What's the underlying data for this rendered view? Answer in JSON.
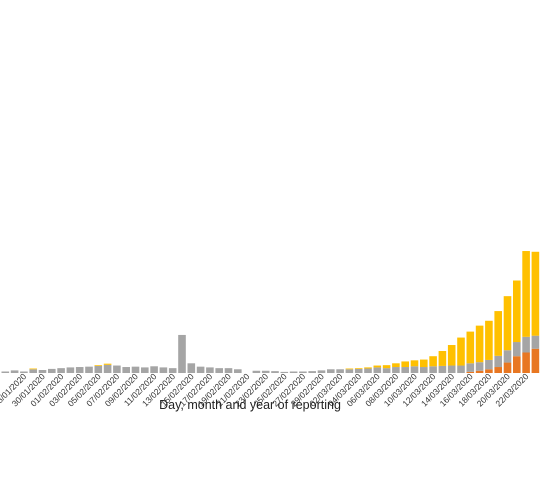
{
  "chart_data": {
    "type": "bar",
    "stacked": true,
    "xlabel": "Day, month and year of reporting",
    "ylabel": "",
    "title": "",
    "ylim": [
      0,
      100
    ],
    "grid": false,
    "colors": [
      "#E87722",
      "#A5A5A5",
      "#FFC000"
    ],
    "categories": [
      "26/01/2020",
      "27/01/2020",
      "28/01/2020",
      "29/01/2020",
      "30/01/2020",
      "31/01/2020",
      "01/02/2020",
      "02/02/2020",
      "03/02/2020",
      "04/02/2020",
      "05/02/2020",
      "06/02/2020",
      "07/02/2020",
      "08/02/2020",
      "09/02/2020",
      "10/02/2020",
      "11/02/2020",
      "12/02/2020",
      "13/02/2020",
      "14/02/2020",
      "15/02/2020",
      "16/02/2020",
      "17/02/2020",
      "18/02/2020",
      "19/02/2020",
      "20/02/2020",
      "21/02/2020",
      "22/02/2020",
      "23/02/2020",
      "24/02/2020",
      "25/02/2020",
      "26/02/2020",
      "27/02/2020",
      "28/02/2020",
      "29/02/2020",
      "01/03/2020",
      "02/03/2020",
      "03/03/2020",
      "04/03/2020",
      "05/03/2020",
      "06/03/2020",
      "07/03/2020",
      "08/03/2020",
      "09/03/2020",
      "10/03/2020",
      "11/03/2020",
      "12/03/2020",
      "13/03/2020",
      "14/03/2020",
      "15/03/2020",
      "16/03/2020",
      "17/03/2020",
      "18/03/2020",
      "19/03/2020",
      "20/03/2020",
      "21/03/2020",
      "22/03/2020",
      "23/03/2020"
    ],
    "tick_labels": [
      "28/01/2020",
      "30/01/2020",
      "01/02/2020",
      "03/02/2020",
      "05/02/2020",
      "07/02/2020",
      "09/02/2020",
      "11/02/2020",
      "13/02/2020",
      "15/02/2020",
      "17/02/2020",
      "19/02/2020",
      "21/02/2020",
      "23/02/2020",
      "25/02/2020",
      "27/02/2020",
      "29/02/2020",
      "02/03/2020",
      "04/03/2020",
      "06/03/2020",
      "08/03/2020",
      "10/03/2020",
      "12/03/2020",
      "14/03/2020",
      "16/03/2020",
      "18/03/2020",
      "20/03/2020",
      "22/03/2020"
    ],
    "series": [
      {
        "values": [
          0.0,
          0.0,
          0.0,
          0.0,
          0.0,
          0.0,
          0.0,
          0.0,
          0.0,
          0.0,
          0.0,
          0.0,
          0.0,
          0.0,
          0.0,
          0.0,
          0.0,
          0.0,
          0.0,
          0.0,
          0.0,
          0.0,
          0.0,
          0.0,
          0.0,
          0.0,
          0.0,
          0.0,
          0.0,
          0.0,
          0.0,
          0.0,
          0.0,
          0.0,
          0.0,
          0.0,
          0.0,
          0.0,
          0.0,
          0.0,
          0.0,
          0.0,
          0.0,
          0.0,
          0.0,
          0.0,
          0.0,
          0.0,
          0.0,
          0.0,
          0.3,
          0.6,
          1.0,
          1.6,
          2.8,
          4.5,
          5.5,
          6.5
        ]
      },
      {
        "values": [
          0.4,
          0.7,
          0.4,
          1.0,
          0.8,
          1.1,
          1.3,
          1.5,
          1.6,
          1.7,
          1.9,
          2.2,
          2.0,
          1.6,
          1.7,
          1.5,
          1.8,
          1.5,
          1.3,
          10.2,
          2.6,
          1.7,
          1.5,
          1.3,
          1.3,
          1.0,
          0.0,
          0.6,
          0.6,
          0.5,
          0.3,
          0.4,
          0.4,
          0.5,
          0.7,
          1.0,
          1.0,
          1.0,
          1.1,
          1.2,
          1.5,
          1.3,
          1.6,
          1.6,
          1.8,
          1.6,
          1.8,
          1.9,
          2.0,
          2.0,
          2.3,
          2.3,
          2.5,
          3.0,
          3.3,
          3.8,
          4.2,
          3.5
        ]
      },
      {
        "values": [
          0.0,
          0.0,
          0.0,
          0.2,
          0.0,
          0.0,
          0.0,
          0.0,
          0.0,
          0.0,
          0.2,
          0.3,
          0.0,
          0.0,
          0.0,
          0.0,
          0.0,
          0.0,
          0.0,
          0.0,
          0.0,
          0.0,
          0.0,
          0.0,
          0.0,
          0.0,
          0.0,
          0.0,
          0.0,
          0.0,
          0.0,
          0.0,
          0.0,
          0.0,
          0.0,
          0.0,
          0.0,
          0.2,
          0.2,
          0.3,
          0.5,
          0.8,
          1.0,
          1.5,
          1.6,
          2.0,
          2.7,
          4.0,
          5.5,
          7.5,
          8.5,
          9.8,
          10.5,
          12.0,
          14.5,
          16.5,
          23.0,
          22.5
        ]
      }
    ]
  }
}
